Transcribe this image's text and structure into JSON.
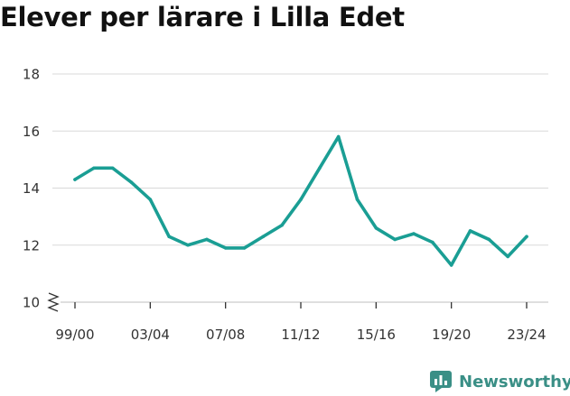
{
  "title": "Elever per lärare i Lilla Edet",
  "brand": {
    "name": "Newsworthy"
  },
  "colors": {
    "line": "#1a9e94",
    "grid": "#d9d9d9",
    "axis": "#333333",
    "brand": "#3a8f86"
  },
  "chart_data": {
    "type": "line",
    "title": "Elever per lärare i Lilla Edet",
    "xlabel": "",
    "ylabel": "",
    "ylim": [
      10,
      18
    ],
    "y_axis_break": true,
    "grid": "horizontal",
    "yticks": [
      10,
      12,
      14,
      16,
      18
    ],
    "xtick_labels": [
      "99/00",
      "03/04",
      "07/08",
      "11/12",
      "15/16",
      "19/20",
      "23/24"
    ],
    "categories": [
      "99/00",
      "00/01",
      "01/02",
      "02/03",
      "03/04",
      "04/05",
      "05/06",
      "06/07",
      "07/08",
      "08/09",
      "09/10",
      "10/11",
      "11/12",
      "12/13",
      "13/14",
      "14/15",
      "15/16",
      "16/17",
      "17/18",
      "18/19",
      "19/20",
      "20/21",
      "21/22",
      "22/23",
      "23/24"
    ],
    "series": [
      {
        "values": [
          14.3,
          14.7,
          14.7,
          14.2,
          13.6,
          12.3,
          12.0,
          12.2,
          11.9,
          11.9,
          12.3,
          12.7,
          13.6,
          14.7,
          15.8,
          13.6,
          12.6,
          12.2,
          12.4,
          12.1,
          11.3,
          12.5,
          12.2,
          11.6,
          12.3
        ]
      }
    ]
  }
}
